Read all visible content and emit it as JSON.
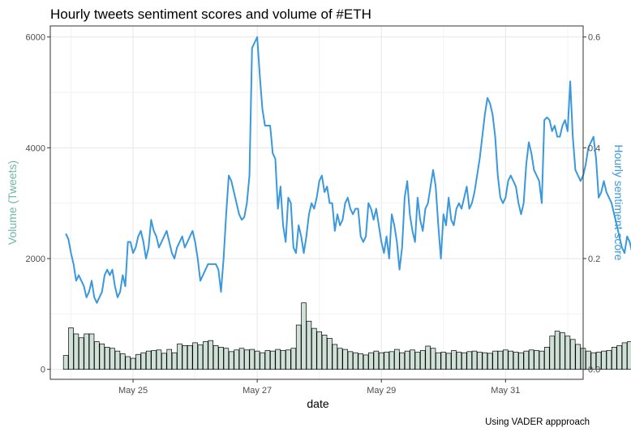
{
  "chart_data": {
    "type": "bar",
    "title": "Hourly tweets sentiment scores and volume of #ETH",
    "xlabel": "date",
    "ylabel_left": "Volume (Tweets)",
    "ylabel_right": "Hourly sentiment score",
    "caption": "Using  VADER appproach",
    "x_ticks": [
      "May 25",
      "May 27",
      "May 29",
      "May 31"
    ],
    "y_left_ticks": [
      "0",
      "2000",
      "4000",
      "6000"
    ],
    "y_right_ticks": [
      "0.0",
      "0.2",
      "0.4",
      "0.6"
    ],
    "ylim_left": [
      -180,
      6200
    ],
    "ylim_right": [
      -0.018,
      0.62
    ],
    "grid": true,
    "colors": {
      "bar_fill": "#cfe0d6",
      "bar_stroke": "#000000",
      "line": "#3a98dc",
      "left_axis_title": "#6fb6a7",
      "right_axis_title": "#3a98dc"
    },
    "series": [
      {
        "kind": "bar",
        "axis": "left",
        "x_start": "2021-05-23T22:00",
        "interval_hours": 2,
        "values": [
          250,
          750,
          640,
          570,
          640,
          640,
          500,
          460,
          400,
          380,
          330,
          280,
          230,
          200,
          270,
          300,
          330,
          340,
          350,
          290,
          360,
          300,
          460,
          430,
          430,
          480,
          440,
          500,
          520,
          430,
          400,
          380,
          320,
          350,
          380,
          350,
          360,
          330,
          300,
          340,
          330,
          360,
          340,
          350,
          380,
          800,
          1200,
          870,
          740,
          680,
          620,
          560,
          450,
          380,
          360,
          320,
          300,
          280,
          260,
          300,
          330,
          300,
          310,
          320,
          360,
          300,
          330,
          350,
          310,
          340,
          420,
          380,
          300,
          310,
          290,
          340,
          310,
          300,
          320,
          330,
          310,
          300,
          290,
          330,
          330,
          350,
          330,
          310,
          300,
          330,
          350,
          340,
          330,
          400,
          600,
          690,
          660,
          600,
          540,
          450,
          380,
          330,
          300,
          310,
          330,
          340,
          400,
          430,
          480,
          500,
          540,
          560,
          450,
          420,
          380,
          340,
          360,
          380,
          400,
          420,
          360,
          340,
          300,
          330,
          300,
          260,
          250,
          230,
          220,
          250,
          280,
          320,
          300,
          310,
          320,
          340,
          320,
          340,
          300,
          320,
          300,
          260,
          230,
          210,
          230,
          250,
          270,
          300,
          320,
          350,
          380,
          360,
          330,
          300,
          280,
          330,
          370,
          350,
          320,
          300,
          290,
          260,
          230,
          210,
          190,
          180,
          210,
          260,
          300,
          370,
          340,
          300,
          360,
          200
        ]
      },
      {
        "kind": "line",
        "axis": "right",
        "x_start": "2021-05-23T22:00",
        "interval_hours": 1,
        "values": [
          0.245,
          0.235,
          0.21,
          0.19,
          0.16,
          0.17,
          0.16,
          0.15,
          0.13,
          0.14,
          0.16,
          0.13,
          0.12,
          0.13,
          0.14,
          0.17,
          0.18,
          0.17,
          0.18,
          0.15,
          0.13,
          0.14,
          0.17,
          0.15,
          0.23,
          0.23,
          0.21,
          0.22,
          0.24,
          0.25,
          0.23,
          0.2,
          0.22,
          0.27,
          0.25,
          0.24,
          0.22,
          0.23,
          0.24,
          0.25,
          0.23,
          0.21,
          0.2,
          0.22,
          0.23,
          0.24,
          0.22,
          0.23,
          0.24,
          0.25,
          0.23,
          0.2,
          0.16,
          0.17,
          0.18,
          0.19,
          0.19,
          0.19,
          0.19,
          0.18,
          0.14,
          0.2,
          0.28,
          0.35,
          0.34,
          0.32,
          0.3,
          0.28,
          0.27,
          0.275,
          0.3,
          0.35,
          0.58,
          0.59,
          0.6,
          0.53,
          0.47,
          0.44,
          0.44,
          0.44,
          0.39,
          0.38,
          0.29,
          0.33,
          0.26,
          0.23,
          0.31,
          0.3,
          0.22,
          0.21,
          0.26,
          0.24,
          0.21,
          0.24,
          0.28,
          0.3,
          0.29,
          0.31,
          0.34,
          0.35,
          0.32,
          0.33,
          0.3,
          0.3,
          0.25,
          0.28,
          0.26,
          0.27,
          0.3,
          0.31,
          0.29,
          0.28,
          0.29,
          0.29,
          0.24,
          0.23,
          0.24,
          0.3,
          0.29,
          0.27,
          0.29,
          0.26,
          0.23,
          0.21,
          0.24,
          0.2,
          0.28,
          0.26,
          0.23,
          0.18,
          0.22,
          0.31,
          0.34,
          0.28,
          0.25,
          0.23,
          0.31,
          0.27,
          0.25,
          0.29,
          0.3,
          0.33,
          0.36,
          0.33,
          0.26,
          0.2,
          0.28,
          0.26,
          0.31,
          0.27,
          0.26,
          0.29,
          0.3,
          0.29,
          0.31,
          0.33,
          0.29,
          0.3,
          0.32,
          0.35,
          0.38,
          0.42,
          0.46,
          0.49,
          0.48,
          0.46,
          0.42,
          0.35,
          0.31,
          0.3,
          0.31,
          0.34,
          0.35,
          0.34,
          0.33,
          0.3,
          0.28,
          0.3,
          0.37,
          0.41,
          0.39,
          0.36,
          0.35,
          0.34,
          0.3,
          0.45,
          0.455,
          0.45,
          0.43,
          0.44,
          0.42,
          0.42,
          0.44,
          0.45,
          0.43,
          0.52,
          0.42,
          0.36,
          0.35,
          0.34,
          0.35,
          0.37,
          0.4,
          0.41,
          0.42,
          0.38,
          0.31,
          0.32,
          0.34,
          0.32,
          0.31,
          0.3,
          0.28,
          0.26,
          0.24,
          0.22,
          0.21,
          0.24,
          0.23,
          0.21,
          0.23,
          0.25,
          0.28,
          0.32,
          0.31,
          0.32,
          0.32,
          0.31,
          0.34,
          0.37,
          0.595,
          0.53,
          0.44,
          0.35,
          0.3,
          0.27,
          0.34,
          0.36,
          0.37,
          0.39,
          0.38,
          0.35,
          0.29,
          0.27,
          0.26,
          0.25,
          0.31,
          0.29,
          0.24,
          0.28,
          0.23,
          0.25,
          0.22,
          0.23,
          0.24,
          0.23,
          0.25,
          0.2,
          0.24,
          0.25,
          0.27,
          0.26,
          0.27,
          0.26,
          0.29,
          0.27,
          0.25,
          0.23,
          0.28,
          0.3,
          0.34,
          0.36,
          0.3,
          0.27,
          0.28,
          0.3,
          0.35,
          0.32,
          0.23,
          0.29,
          0.26,
          0.28,
          0.25,
          0.3,
          0.35,
          0.31,
          0.28,
          0.3,
          0.34,
          0.31,
          0.26,
          0.28,
          0.3,
          0.35,
          0.32,
          0.27,
          0.25,
          0.25,
          0.28,
          0.26,
          0.22,
          0.24,
          0.25,
          0.27,
          0.24,
          0.23,
          0.22,
          0.28,
          0.27,
          0.29,
          0.21,
          0.18,
          0.23,
          0.25,
          0.24,
          0.26,
          0.28,
          0.3,
          0.29,
          0.33,
          0.35,
          0.39,
          0.36,
          0.24,
          0.29,
          0.25,
          0.27,
          0.28,
          0.32,
          0.34,
          0.3,
          0.27,
          0.24
        ]
      }
    ]
  }
}
